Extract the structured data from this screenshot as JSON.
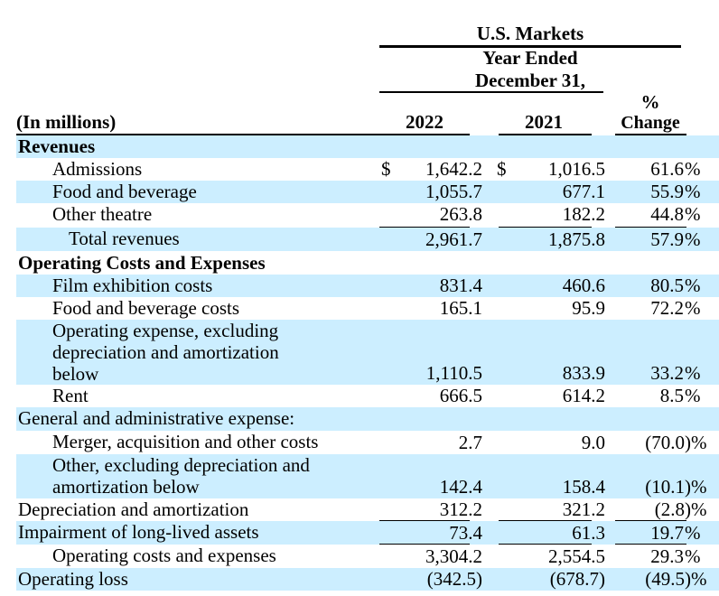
{
  "header": {
    "segment": "U.S. Markets",
    "period_line1": "Year Ended",
    "period_line2": "December 31,",
    "units_label": "(In millions)",
    "col_2022": "2022",
    "col_2021": "2021",
    "pct_symbol": "%",
    "change_label": "Change"
  },
  "rows": [
    {
      "label": "Revenues",
      "bold": true
    },
    {
      "label": "Admissions",
      "v2022": "1,642.2",
      "v2021": "1,016.5",
      "chg": "61.6",
      "dollar": true
    },
    {
      "label": "Food and beverage",
      "v2022": "1,055.7",
      "v2021": "677.1",
      "chg": "55.9"
    },
    {
      "label": "Other theatre",
      "v2022": "263.8",
      "v2021": "182.2",
      "chg": "44.8"
    },
    {
      "label": "Total revenues",
      "v2022": "2,961.7",
      "v2021": "1,875.8",
      "chg": "57.9"
    },
    {
      "label": "Operating Costs and Expenses",
      "bold": true
    },
    {
      "label": "Film exhibition costs",
      "v2022": "831.4",
      "v2021": "460.6",
      "chg": "80.5"
    },
    {
      "label": "Food and beverage costs",
      "v2022": "165.1",
      "v2021": "95.9",
      "chg": "72.2"
    },
    {
      "label_lines": [
        "Operating expense, excluding",
        "depreciation and amortization",
        "below"
      ],
      "v2022": "1,110.5",
      "v2021": "833.9",
      "chg": "33.2"
    },
    {
      "label": "Rent",
      "v2022": "666.5",
      "v2021": "614.2",
      "chg": "8.5"
    },
    {
      "label": "General and administrative expense:"
    },
    {
      "label": "Merger, acquisition and other costs",
      "v2022": "2.7",
      "v2021": "9.0",
      "chg": "(70.0)"
    },
    {
      "label_lines": [
        "Other, excluding depreciation and",
        "amortization below"
      ],
      "v2022": "142.4",
      "v2021": "158.4",
      "chg": "(10.1)"
    },
    {
      "label": "Depreciation and amortization",
      "v2022": "312.2",
      "v2021": "321.2",
      "chg": "(2.8)"
    },
    {
      "label": "Impairment of long-lived assets",
      "v2022": "73.4",
      "v2021": "61.3",
      "chg": "19.7"
    },
    {
      "label": "Operating costs and expenses",
      "v2022": "3,304.2",
      "v2021": "2,554.5",
      "chg": "29.3"
    },
    {
      "label": "Operating loss",
      "v2022": "(342.5)",
      "v2021": "(678.7)",
      "chg": "(49.5)"
    }
  ],
  "symbols": {
    "dollar": "$",
    "percent": "%"
  }
}
